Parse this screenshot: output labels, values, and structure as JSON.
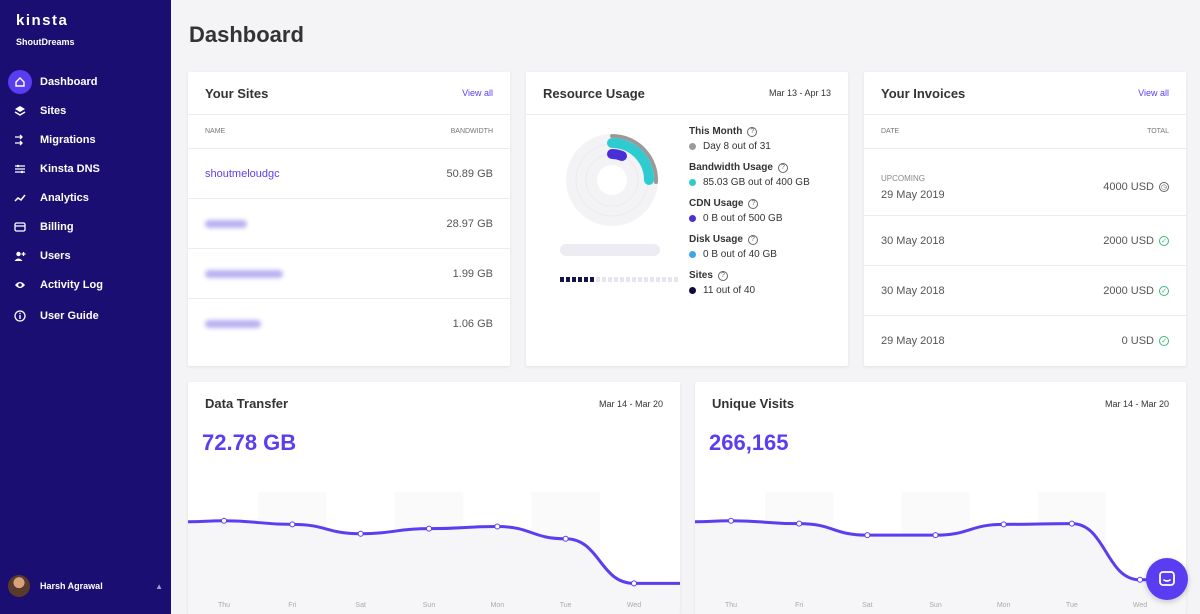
{
  "brand": {
    "logo": "kinsta",
    "company": "ShoutDreams"
  },
  "nav": [
    {
      "label": "Dashboard",
      "icon": "home-icon",
      "active": true
    },
    {
      "label": "Sites",
      "icon": "layers-icon"
    },
    {
      "label": "Migrations",
      "icon": "migrate-icon"
    },
    {
      "label": "Kinsta DNS",
      "icon": "dns-icon"
    },
    {
      "label": "Analytics",
      "icon": "analytics-icon"
    },
    {
      "label": "Billing",
      "icon": "billing-icon"
    },
    {
      "label": "Users",
      "icon": "add-user-icon"
    },
    {
      "label": "Activity Log",
      "icon": "eye-icon"
    },
    {
      "label": "User Guide",
      "icon": "info-icon"
    }
  ],
  "user": {
    "name": "Harsh Agrawal"
  },
  "page": {
    "title": "Dashboard"
  },
  "sites": {
    "title": "Your Sites",
    "view_all": "View all",
    "col_name": "NAME",
    "col_bandwidth": "BANDWIDTH",
    "rows": [
      {
        "name": "shoutmeloudgc",
        "bandwidth": "50.89 GB"
      },
      {
        "name": "",
        "bandwidth": "28.97 GB"
      },
      {
        "name": "",
        "bandwidth": "1.99 GB"
      },
      {
        "name": "",
        "bandwidth": "1.06 GB"
      }
    ]
  },
  "resource": {
    "title": "Resource Usage",
    "date_range": "Mar 13 - Apr 13",
    "items": [
      {
        "label": "This Month",
        "value": "Day 8 out of 31",
        "color": "#9a9a9a"
      },
      {
        "label": "Bandwidth Usage",
        "value": "85.03 GB out of 400 GB",
        "color": "#2ecbd1"
      },
      {
        "label": "CDN Usage",
        "value": "0 B out of 500 GB",
        "color": "#4a2fd8"
      },
      {
        "label": "Disk Usage",
        "value": "0 B out of 40 GB",
        "color": "#3ea6e6"
      },
      {
        "label": "Sites",
        "value": "11 out of 40",
        "color": "#0e0b3a"
      }
    ],
    "sites_used": 11,
    "sites_total": 40
  },
  "invoices": {
    "title": "Your Invoices",
    "view_all": "View all",
    "col_date": "DATE",
    "col_total": "TOTAL",
    "upcoming_label": "UPCOMING",
    "rows": [
      {
        "date": "29 May 2019",
        "total": "4000 USD",
        "status": "upcoming"
      },
      {
        "date": "30 May 2018",
        "total": "2000 USD",
        "status": "paid"
      },
      {
        "date": "30 May 2018",
        "total": "2000 USD",
        "status": "paid"
      },
      {
        "date": "29 May 2018",
        "total": "0 USD",
        "status": "paid"
      }
    ]
  },
  "data_transfer": {
    "title": "Data Transfer",
    "date_range": "Mar 14 - Mar 20",
    "value": "72.78 GB"
  },
  "unique_visits": {
    "title": "Unique Visits",
    "date_range": "Mar 14 - Mar 20",
    "value": "266,165"
  },
  "chart_data": [
    {
      "type": "line",
      "x": [
        "Thu",
        "Fri",
        "Sat",
        "Sun",
        "Mon",
        "Tue",
        "Wed"
      ],
      "series": [
        {
          "values": [
            0.92,
            0.87,
            0.74,
            0.81,
            0.84,
            0.67,
            0.05
          ]
        }
      ],
      "color": "#5b3ef0"
    },
    {
      "type": "line",
      "x": [
        "Thu",
        "Fri",
        "Sat",
        "Sun",
        "Mon",
        "Tue",
        "Wed"
      ],
      "series": [
        {
          "values": [
            0.92,
            0.88,
            0.72,
            0.72,
            0.87,
            0.88,
            0.1
          ]
        }
      ],
      "color": "#5b3ef0"
    }
  ]
}
